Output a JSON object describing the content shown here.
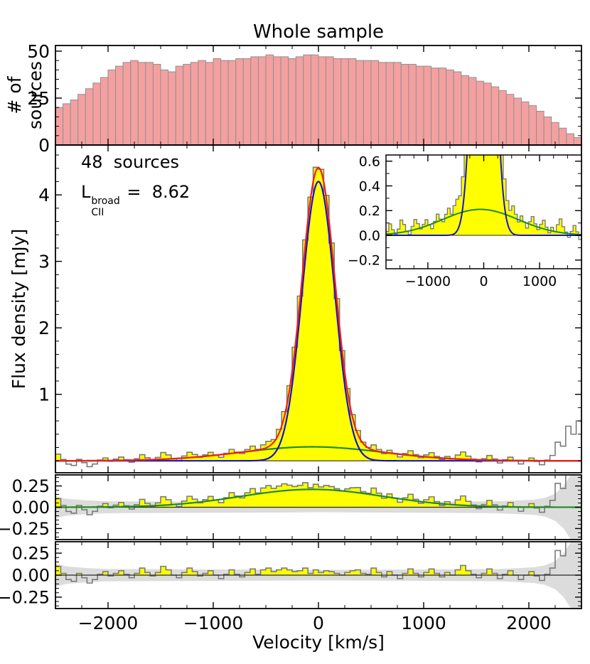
{
  "figure": {
    "title": "Whole sample",
    "xlabel": "Velocity [km/s]",
    "top_ylabel": "# of sources",
    "main_ylabel": "Flux density [mJy]",
    "annotation": {
      "sources": "48  sources",
      "lcii_base": "L",
      "lcii_sup": "broad",
      "lcii_sub": "CII",
      "lcii_value": " =  8.62"
    }
  },
  "colors": {
    "count_fill": "#f4a0a0",
    "count_edge": "#909090",
    "hist_edge": "#7a7a7a",
    "line_fill": "#ffff00",
    "narrow_fit": "#1414cc",
    "broad_fit": "#1e8b1e",
    "total_fit": "#f02015",
    "envelope": "#dcdcdc",
    "zero_line": "#2a2a2a",
    "spine": "#000000"
  },
  "chart_data": {
    "type": "line",
    "title": "Whole sample",
    "xlabel": "Velocity [km/s]",
    "x_range": [
      -2500,
      2500
    ],
    "x_ticks": [
      [
        -2000,
        "−2000"
      ],
      [
        -1000,
        "−1000"
      ],
      [
        0,
        "0"
      ],
      [
        1000,
        "1000"
      ],
      [
        2000,
        "2000"
      ]
    ],
    "x_minor_step": 250,
    "panels": {
      "counts": {
        "type": "bar",
        "ylabel": "# of sources",
        "y_range": [
          0,
          53
        ],
        "y_ticks": [
          [
            0,
            "0"
          ],
          [
            25,
            "25"
          ],
          [
            50,
            "50"
          ]
        ],
        "y_minor_step": 5,
        "bar_start": -2500,
        "bar_width": 71.4286,
        "values": [
          20,
          22,
          24,
          27,
          30,
          33,
          36,
          40,
          42,
          44,
          45,
          44,
          44,
          43,
          40,
          39,
          42,
          43,
          44,
          45,
          44,
          46,
          45,
          45,
          46,
          46,
          47,
          47,
          48,
          47,
          47,
          46,
          47,
          48,
          48,
          47,
          47,
          46,
          46,
          46,
          45,
          45,
          45,
          44,
          44,
          44,
          43,
          43,
          42,
          42,
          41,
          41,
          40,
          39,
          37,
          36,
          34,
          33,
          31,
          29,
          27,
          25,
          23,
          21,
          18,
          15,
          12,
          9,
          6,
          4
        ]
      },
      "spectrum": {
        "type": "area",
        "ylabel": "Flux density [mJy]",
        "y_range": [
          -0.18,
          4.75
        ],
        "y_ticks": [
          [
            1,
            "1"
          ],
          [
            2,
            "2"
          ],
          [
            3,
            "3"
          ],
          [
            4,
            "4"
          ]
        ],
        "y_minor_step": 0.2,
        "bin_start": -2500,
        "bin_width": 50,
        "noise": [
          0.1,
          0.02,
          -0.05,
          -0.07,
          0.02,
          -0.03,
          -0.09,
          -0.05,
          0.01,
          0.04,
          -0.01,
          0.02,
          0.05,
          0.01,
          -0.03,
          0.02,
          0.08,
          0.03,
          -0.01,
          0.03,
          0.1,
          0.06,
          0.0,
          -0.03,
          0.03,
          0.08,
          0.04,
          -0.01,
          0.02,
          0.05,
          0.0,
          -0.04,
          0.01,
          0.06,
          0.01,
          -0.02,
          0.03,
          0.07,
          0.01,
          0.06,
          0.08,
          0.04,
          0.06,
          0.08,
          0.06,
          0.04,
          0.05,
          0.08,
          0.02,
          0.06,
          0.03,
          0.05,
          0.04,
          0.02,
          0.0,
          0.03,
          0.05,
          0.06,
          0.02,
          0.01,
          0.08,
          0.03,
          -0.02,
          0.04,
          0.0,
          -0.04,
          0.02,
          0.07,
          0.02,
          -0.02,
          0.03,
          0.07,
          0.02,
          -0.02,
          0.03,
          0.0,
          0.06,
          0.11,
          0.05,
          0.01,
          -0.03,
          0.02,
          0.07,
          0.02,
          -0.04,
          0.01,
          0.05,
          0.0,
          -0.05,
          0.0,
          0.04,
          -0.01,
          -0.06,
          0.01,
          0.08,
          0.28,
          0.22,
          0.52,
          0.4,
          0.6
        ],
        "fits": {
          "narrow": {
            "amp": 4.2,
            "center": 0,
            "sigma": 155
          },
          "broad": {
            "amp": 0.21,
            "center": -60,
            "sigma": 680
          }
        },
        "fill_range": [
          -2500,
          2150
        ]
      },
      "inset": {
        "type": "area",
        "x_range": [
          -1750,
          1750
        ],
        "x_ticks": [
          [
            -1000,
            "−1000"
          ],
          [
            0,
            "0"
          ],
          [
            1000,
            "1000"
          ]
        ],
        "x_minor_step": 250,
        "y_range": [
          -0.27,
          0.65
        ],
        "y_ticks": [
          [
            -0.2,
            "−0.2"
          ],
          [
            0,
            "0.0"
          ],
          [
            0.2,
            "0.2"
          ],
          [
            0.4,
            "0.4"
          ],
          [
            0.6,
            "0.6"
          ]
        ],
        "y_minor_step": 0.1
      },
      "residual_broad": {
        "type": "area",
        "derived": "spectrum_minus_narrow_fit",
        "show_broad_fit": true,
        "y_range": [
          -0.38,
          0.38
        ],
        "y_ticks": [
          [
            -0.25,
            "−0.25"
          ],
          [
            0,
            "0.00"
          ],
          [
            0.25,
            "0.25"
          ]
        ],
        "y_minor_step": 0.05
      },
      "residual_total": {
        "type": "area",
        "derived": "spectrum_minus_total_fit",
        "show_broad_fit": false,
        "y_range": [
          -0.38,
          0.38
        ],
        "y_ticks": [
          [
            -0.25,
            "−0.25"
          ],
          [
            0,
            "0.00"
          ],
          [
            0.25,
            "0.25"
          ]
        ],
        "y_minor_step": 0.05
      }
    },
    "noise_envelope": [
      [
        -2500,
        0.13
      ],
      [
        -2400,
        0.1
      ],
      [
        -2200,
        0.08
      ],
      [
        -2000,
        0.07
      ],
      [
        -1000,
        0.065
      ],
      [
        0,
        0.06
      ],
      [
        1000,
        0.065
      ],
      [
        1700,
        0.07
      ],
      [
        1900,
        0.08
      ],
      [
        2050,
        0.09
      ],
      [
        2150,
        0.11
      ],
      [
        2250,
        0.16
      ],
      [
        2330,
        0.25
      ],
      [
        2400,
        0.38
      ],
      [
        2450,
        0.5
      ],
      [
        2500,
        0.6
      ]
    ]
  }
}
